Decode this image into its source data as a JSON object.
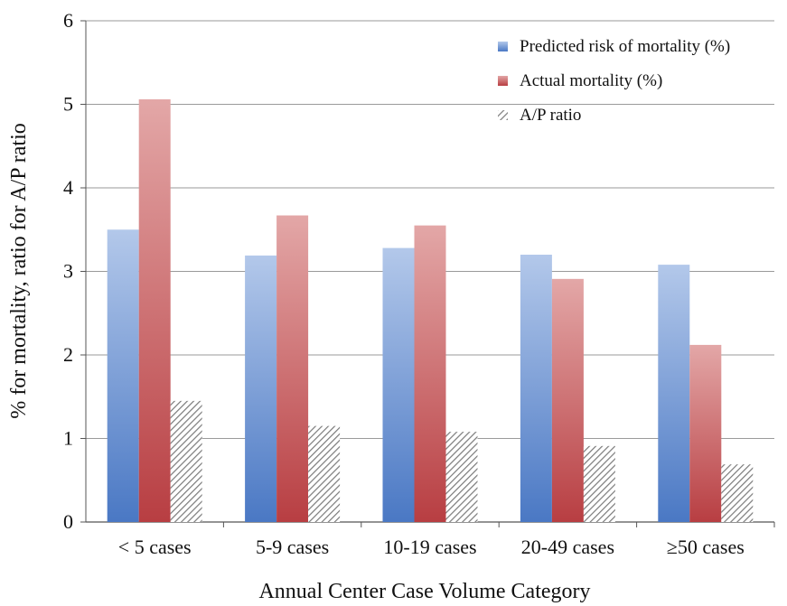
{
  "chart_data": {
    "type": "bar",
    "title": "",
    "xlabel": "Annual Center Case Volume Category",
    "ylabel": "% for mortality, ratio for A/P ratio",
    "categories": [
      "< 5 cases",
      "5-9 cases",
      "10-19 cases",
      "20-49 cases",
      "≥50 cases"
    ],
    "series": [
      {
        "name": "Predicted risk of mortality (%)",
        "values": [
          3.5,
          3.19,
          3.28,
          3.2,
          3.08
        ],
        "color": "#4a78c4"
      },
      {
        "name": "Actual mortality (%)",
        "values": [
          5.06,
          3.67,
          3.55,
          2.91,
          2.12
        ],
        "color": "#c0474a"
      },
      {
        "name": "A/P ratio",
        "values": [
          1.45,
          1.15,
          1.08,
          0.91,
          0.69
        ],
        "color": "#9a9a9a",
        "pattern": "diagonal-hatch"
      }
    ],
    "ylim": [
      0,
      6
    ],
    "yticks": [
      "0",
      "1",
      "2",
      "3",
      "4",
      "5",
      "6"
    ],
    "grid": true,
    "legend_position": "top-right"
  }
}
